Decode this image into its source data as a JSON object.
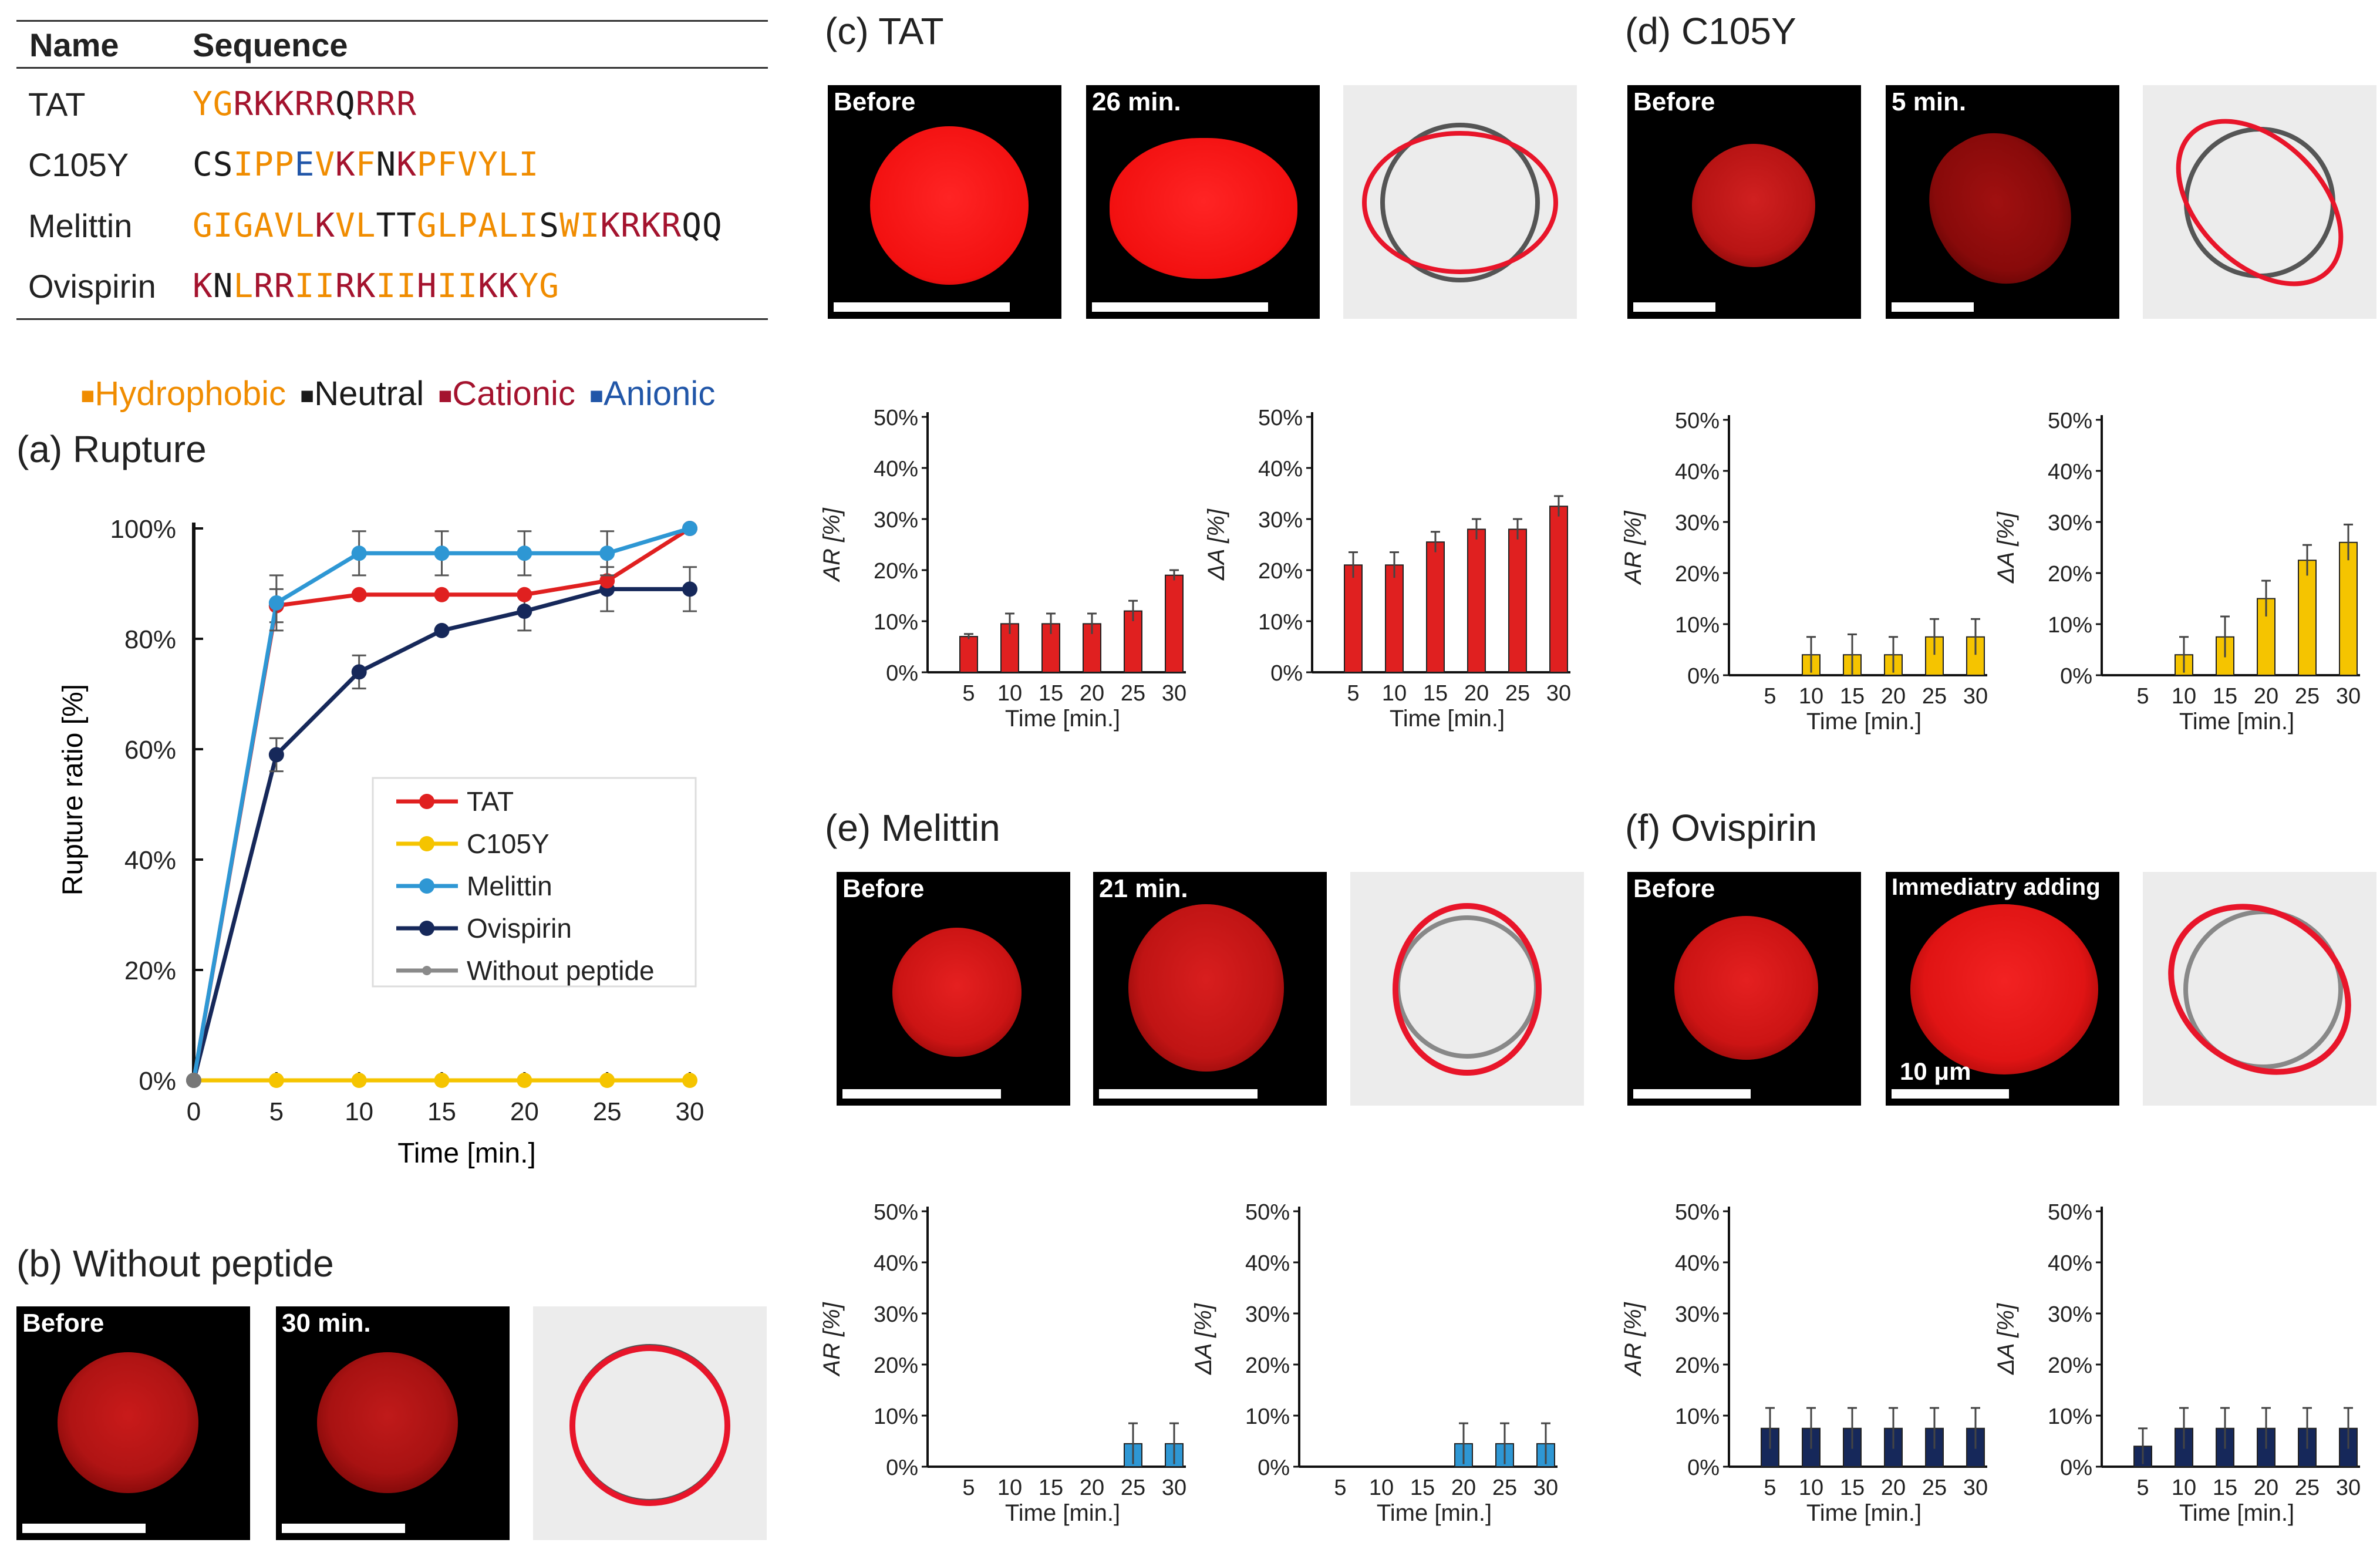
{
  "table": {
    "headers": [
      "Name",
      "Sequence"
    ],
    "rows": [
      {
        "name": "TAT",
        "sequence": "YGRKKRRQRRR",
        "classes": "HHCCCCCNCCC"
      },
      {
        "name": "C105Y",
        "sequence": "CSIPPEVKFNKPFVYLI",
        "classes": "NNHHHAHCHNCHHHHHH"
      },
      {
        "name": "Melittin",
        "sequence": "GIGAVLKVLTTGLPALISWIKRKRQQ",
        "classes": "HHHHHHCHHNNHHHHHHNHHCCCCNN"
      },
      {
        "name": "Ovispirin",
        "sequence": "KNLRRIIRKIIHIIKKYG",
        "classes": "CNHCCHHCCHHCHHCCHH"
      }
    ],
    "legend": [
      {
        "marker": "■",
        "label": "Hydrophobic",
        "color": "#f08c00"
      },
      {
        "marker": "■",
        "label": "Neutral",
        "color": "#1a1a1a"
      },
      {
        "marker": "■",
        "label": "Cationic",
        "color": "#a4132e"
      },
      {
        "marker": "■",
        "label": "Anionic",
        "color": "#2156a8"
      }
    ]
  },
  "colors": {
    "hydrophobic": "#f08c00",
    "neutral": "#1a1a1a",
    "cationic": "#a4132e",
    "anionic": "#2156a8",
    "tat": "#e02020",
    "c105y": "#f5c400",
    "melittin": "#2e97d4",
    "ovispirin": "#16285a",
    "without": "#8a8a8a",
    "cell_red": "#ff1a1a",
    "outline_before": "#555555",
    "outline_after": "#e8152a"
  },
  "panels": {
    "a": {
      "title": "(a) Rupture"
    },
    "b": {
      "title": "(b) Without peptide",
      "images": [
        "Before",
        "30 min."
      ]
    },
    "c": {
      "title": "(c) TAT",
      "images": [
        "Before",
        "26 min."
      ]
    },
    "d": {
      "title": "(d) C105Y",
      "images": [
        "Before",
        "5 min."
      ]
    },
    "e": {
      "title": "(e) Melittin",
      "images": [
        "Before",
        "21 min."
      ]
    },
    "f": {
      "title": "(f) Ovispirin",
      "images": [
        "Before",
        "Immediatry adding"
      ],
      "scale_label": "10 μm"
    }
  },
  "chart_data": [
    {
      "id": "rupture",
      "type": "line",
      "xlabel": "Time [min.]",
      "ylabel": "Rupture ratio [%]",
      "x": [
        0,
        5,
        10,
        15,
        20,
        25,
        30
      ],
      "xticks": [
        "0",
        "5",
        "10",
        "15",
        "20",
        "25",
        "30"
      ],
      "ylim": [
        0,
        100
      ],
      "yticks": [
        "0%",
        "20%",
        "40%",
        "60%",
        "80%",
        "100%"
      ],
      "legend_position": "right-center",
      "series": [
        {
          "name": "TAT",
          "values": [
            0,
            86,
            88,
            88,
            88,
            90.5,
            100
          ],
          "errors": [
            0,
            3,
            0,
            0,
            0,
            0,
            0
          ]
        },
        {
          "name": "C105Y",
          "values": [
            0,
            0,
            0,
            0,
            0,
            0,
            0
          ],
          "errors": [
            0,
            0,
            0,
            0,
            0,
            0,
            0
          ]
        },
        {
          "name": "Melittin",
          "values": [
            0,
            86.5,
            95.5,
            95.5,
            95.5,
            95.5,
            100
          ],
          "errors": [
            0,
            5,
            4,
            4,
            4,
            4,
            0
          ]
        },
        {
          "name": "Ovispirin",
          "values": [
            0,
            59,
            74,
            81.5,
            85,
            89,
            89
          ],
          "errors": [
            0,
            3,
            3,
            0,
            3.5,
            4,
            4
          ]
        },
        {
          "name": "Without peptide",
          "values": [
            0,
            0,
            0,
            0,
            0,
            0,
            0
          ],
          "errors": [
            0,
            0,
            0,
            0,
            0,
            0,
            0
          ]
        }
      ]
    },
    {
      "id": "c_ar",
      "type": "bar",
      "ylabel": "AR [%]",
      "xlabel": "Time [min.]",
      "categories": [
        "5",
        "10",
        "15",
        "20",
        "25",
        "30"
      ],
      "values": [
        7,
        9.5,
        9.5,
        9.5,
        12,
        19
      ],
      "errors": [
        0.5,
        2,
        2,
        2,
        2,
        1
      ],
      "ylim": [
        0,
        50
      ],
      "yticks": [
        "0%",
        "10%",
        "20%",
        "30%",
        "40%",
        "50%"
      ]
    },
    {
      "id": "c_da",
      "type": "bar",
      "ylabel": "ΔA [%]",
      "xlabel": "Time [min.]",
      "categories": [
        "5",
        "10",
        "15",
        "20",
        "25",
        "30"
      ],
      "values": [
        21,
        21,
        25.5,
        28,
        28,
        32.5
      ],
      "errors": [
        2.5,
        2.5,
        2,
        2,
        2,
        2
      ],
      "ylim": [
        0,
        50
      ],
      "yticks": [
        "0%",
        "10%",
        "20%",
        "30%",
        "40%",
        "50%"
      ]
    },
    {
      "id": "d_ar",
      "type": "bar",
      "ylabel": "AR [%]",
      "xlabel": "Time [min.]",
      "categories": [
        "5",
        "10",
        "15",
        "20",
        "25",
        "30"
      ],
      "values": [
        0,
        4,
        4,
        4,
        7.5,
        7.5
      ],
      "errors": [
        0,
        3.5,
        4,
        3.5,
        3.5,
        3.5
      ],
      "ylim": [
        0,
        50
      ],
      "yticks": [
        "0%",
        "10%",
        "20%",
        "30%",
        "40%",
        "50%"
      ]
    },
    {
      "id": "d_da",
      "type": "bar",
      "ylabel": "ΔA [%]",
      "xlabel": "Time [min.]",
      "categories": [
        "5",
        "10",
        "15",
        "20",
        "25",
        "30"
      ],
      "values": [
        0,
        4,
        7.5,
        15,
        22.5,
        26
      ],
      "errors": [
        0,
        3.5,
        4,
        3.5,
        3,
        3.5
      ],
      "ylim": [
        0,
        50
      ],
      "yticks": [
        "0%",
        "10%",
        "20%",
        "30%",
        "40%",
        "50%"
      ]
    },
    {
      "id": "e_ar",
      "type": "bar",
      "ylabel": "AR [%]",
      "xlabel": "Time [min.]",
      "categories": [
        "5",
        "10",
        "15",
        "20",
        "25",
        "30"
      ],
      "values": [
        0,
        0,
        0,
        0,
        4.5,
        4.5
      ],
      "errors": [
        0,
        0,
        0,
        0,
        4,
        4
      ],
      "ylim": [
        0,
        50
      ],
      "yticks": [
        "0%",
        "10%",
        "20%",
        "30%",
        "40%",
        "50%"
      ]
    },
    {
      "id": "e_da",
      "type": "bar",
      "ylabel": "ΔA [%]",
      "xlabel": "Time [min.]",
      "categories": [
        "5",
        "10",
        "15",
        "20",
        "25",
        "30"
      ],
      "values": [
        0,
        0,
        0,
        4.5,
        4.5,
        4.5
      ],
      "errors": [
        0,
        0,
        0,
        4,
        4,
        4
      ],
      "ylim": [
        0,
        50
      ],
      "yticks": [
        "0%",
        "10%",
        "20%",
        "30%",
        "40%",
        "50%"
      ]
    },
    {
      "id": "f_ar",
      "type": "bar",
      "ylabel": "AR [%]",
      "xlabel": "Time [min.]",
      "categories": [
        "5",
        "10",
        "15",
        "20",
        "25",
        "30"
      ],
      "values": [
        7.5,
        7.5,
        7.5,
        7.5,
        7.5,
        7.5
      ],
      "errors": [
        4,
        4,
        4,
        4,
        4,
        4
      ],
      "ylim": [
        0,
        50
      ],
      "yticks": [
        "0%",
        "10%",
        "20%",
        "30%",
        "40%",
        "50%"
      ]
    },
    {
      "id": "f_da",
      "type": "bar",
      "ylabel": "ΔA [%]",
      "xlabel": "Time [min.]",
      "categories": [
        "5",
        "10",
        "15",
        "20",
        "25",
        "30"
      ],
      "values": [
        4,
        7.5,
        7.5,
        7.5,
        7.5,
        7.5
      ],
      "errors": [
        3.5,
        4,
        4,
        4,
        4,
        4
      ],
      "ylim": [
        0,
        50
      ],
      "yticks": [
        "0%",
        "10%",
        "20%",
        "30%",
        "40%",
        "50%"
      ]
    }
  ]
}
